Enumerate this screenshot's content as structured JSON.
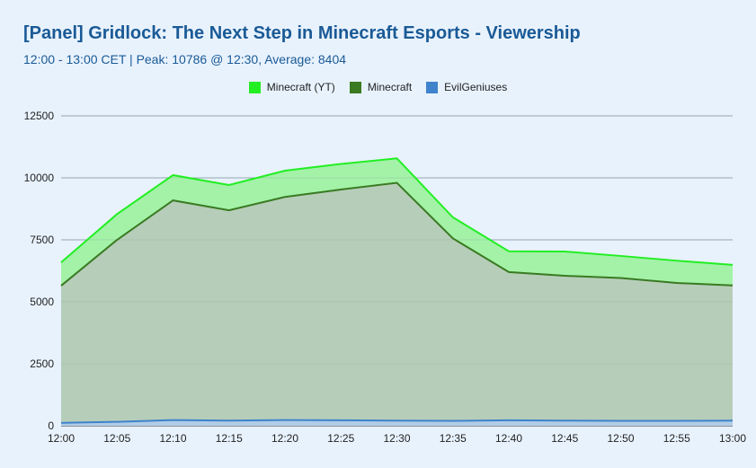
{
  "title": "[Panel] Gridlock: The Next Step in Minecraft Esports - Viewership",
  "subtitle": "12:00 - 13:00 CET | Peak: 10786 @ 12:30, Average: 8404",
  "chart_data": {
    "type": "area",
    "stacked": true,
    "x": [
      "12:00",
      "12:05",
      "12:10",
      "12:15",
      "12:20",
      "12:25",
      "12:30",
      "12:35",
      "12:40",
      "12:45",
      "12:50",
      "12:55",
      "13:00"
    ],
    "yticks": [
      0,
      2500,
      5000,
      7500,
      10000,
      12500
    ],
    "ylim": [
      0,
      12500
    ],
    "grid": true,
    "legend_position": "top-center",
    "series": [
      {
        "name": "EvilGeniuses",
        "color": "#3f83cc",
        "values": [
          120,
          160,
          230,
          210,
          230,
          220,
          210,
          200,
          220,
          210,
          200,
          200,
          210
        ]
      },
      {
        "name": "Minecraft",
        "color": "#3a7a22",
        "values": [
          5530,
          7340,
          8860,
          8480,
          9000,
          9310,
          9590,
          7360,
          5980,
          5840,
          5760,
          5560,
          5450
        ]
      },
      {
        "name": "Minecraft (YT)",
        "color": "#22ee22",
        "values": [
          940,
          1040,
          1020,
          1020,
          1060,
          1030,
          986,
          850,
          840,
          980,
          890,
          900,
          830
        ]
      }
    ]
  }
}
